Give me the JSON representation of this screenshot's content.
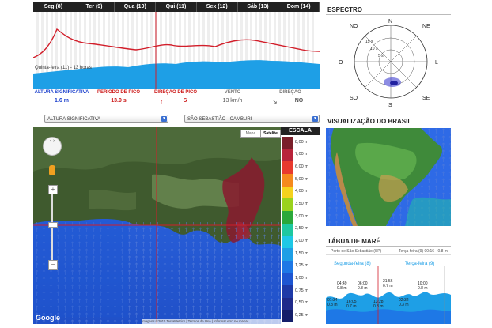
{
  "days": [
    "Seg (8)",
    "Ter (9)",
    "Qua (10)",
    "Qui (11)",
    "Sex (12)",
    "Sáb (13)",
    "Dom (14)"
  ],
  "chart_caption": "Quinta-feira (11) - 13 horas",
  "params": [
    {
      "title": "ALTURA SIGNIFICATIVA",
      "value": "1.6 m",
      "title_color": "#1a3fcc",
      "value_color": "#1a3fcc"
    },
    {
      "title": "PERÍODO DE PICO",
      "value": "13.9 s",
      "title_color": "#cc1a1a",
      "value_color": "#cc1a1a"
    },
    {
      "title": "DIREÇÃO DE PICO",
      "value": "S",
      "title_color": "#cc1a1a",
      "value_color": "#cc1a1a"
    },
    {
      "title": "VENTO",
      "value": "13 km/h",
      "title_color": "#777",
      "value_color": "#555"
    },
    {
      "title": "DIREÇÃO",
      "value": "NO",
      "title_color": "#777",
      "value_color": "#555"
    }
  ],
  "select_param": "ALTURA SIGNIFICATIVA",
  "select_location": "SÃO SEBASTIÃO - CAMBURI",
  "map_buttons": {
    "map": "Mapa",
    "satellite": "Satélite"
  },
  "map_logo": "Google",
  "map_footer": "Imagens ©2015 TerraMetrics | Termos de Uso | Informar erro no mapa",
  "scale": {
    "title": "ESCALA",
    "labels": [
      "8,00 m",
      "7,00 m",
      "6,00 m",
      "5,00 m",
      "4,00 m",
      "3,50 m",
      "3,00 m",
      "2,50 m",
      "2,00 m",
      "1,50 m",
      "1,25 m",
      "1,00 m",
      "0,75 m",
      "0,50 m",
      "0,25 m"
    ],
    "colors": [
      "#7a1f2a",
      "#b8243a",
      "#e83a2e",
      "#f58a1e",
      "#f5d21e",
      "#9ad21e",
      "#2aa83a",
      "#1ec8a0",
      "#1ec8e6",
      "#1e9fe6",
      "#1e78e6",
      "#1e56d2",
      "#1e3aa8",
      "#1e2a8a",
      "#141e6a"
    ]
  },
  "spectrum": {
    "title": "ESPECTRO",
    "dirs": {
      "N": "N",
      "NE": "NE",
      "L": "L",
      "SE": "SE",
      "S": "S",
      "SO": "SO",
      "O": "O",
      "NO": "NO"
    },
    "rings": [
      "15 s",
      "10 s",
      "5 s"
    ]
  },
  "brazil": {
    "title": "VISUALIZAÇÃO DO BRASIL"
  },
  "tide": {
    "title": "TÁBUA DE MARÉ",
    "port": "Porto de São Sebastião (SP)",
    "now": "Terça-feira (9) 00:16 - 0.8 m",
    "day1": "Segunda-feira (8)",
    "day2": "Terça-feira (9)",
    "marks": [
      {
        "t": "04:49",
        "v": "0.8 m"
      },
      {
        "t": "06:00",
        "v": "0.8 m"
      },
      {
        "t": "21:56",
        "v": "0.7 m"
      },
      {
        "t": "10:00",
        "v": "0.8 m"
      },
      {
        "t": "01:34",
        "v": "0.3 m"
      },
      {
        "t": "16:05",
        "v": "0.7 m"
      },
      {
        "t": "13:28",
        "v": "0.8 m"
      },
      {
        "t": "02:32",
        "v": "0.3 m"
      }
    ]
  }
}
